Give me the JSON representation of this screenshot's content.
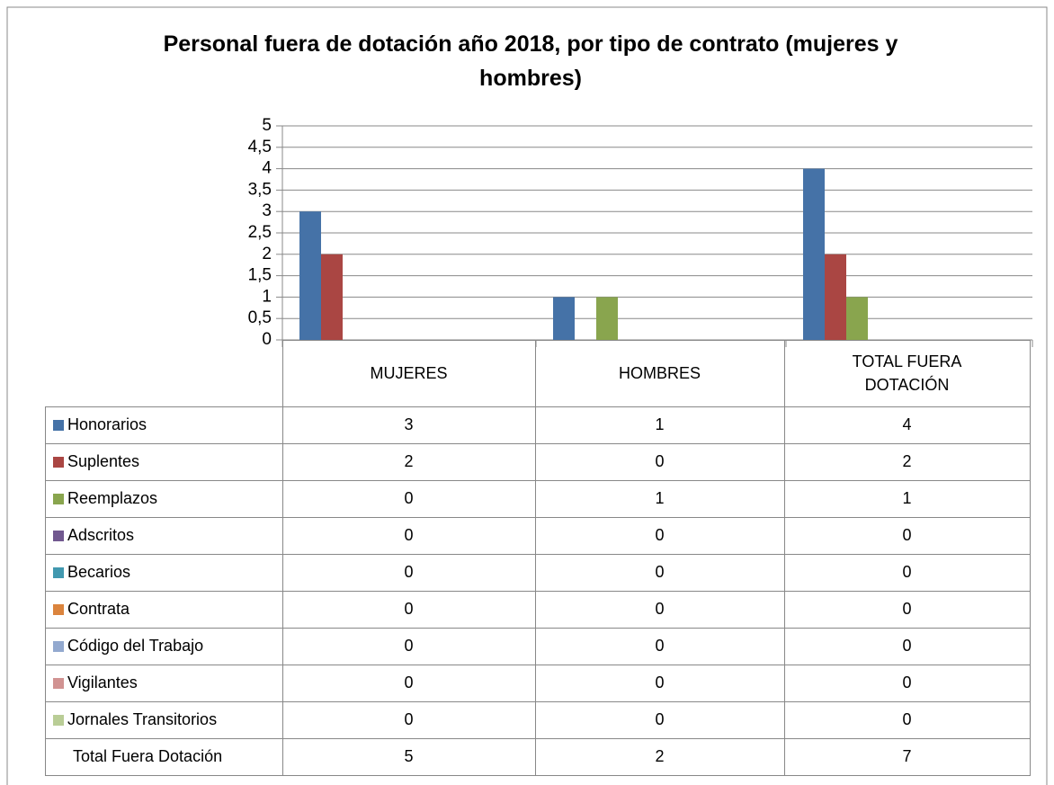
{
  "chart_data": {
    "type": "bar",
    "title": "Personal fuera de dotación año 2018, por tipo de contrato (mujeres y hombres)",
    "categories": [
      "MUJERES",
      "HOMBRES",
      "TOTAL FUERA DOTACIÓN"
    ],
    "ylim": [
      0,
      5
    ],
    "yticks": [
      0,
      {
        "value": 0.5,
        "label": "0,5"
      },
      1,
      {
        "value": 1.5,
        "label": "1,5"
      },
      2,
      {
        "value": 2.5,
        "label": "2,5"
      },
      3,
      {
        "value": 3.5,
        "label": "3,5"
      },
      4,
      {
        "value": 4.5,
        "label": "4,5"
      },
      5
    ],
    "grid": true,
    "series": [
      {
        "name": "Honorarios",
        "color": "#4572a7",
        "values": [
          3,
          1,
          4
        ]
      },
      {
        "name": "Suplentes",
        "color": "#aa4643",
        "values": [
          2,
          0,
          2
        ]
      },
      {
        "name": "Reemplazos",
        "color": "#89a54e",
        "values": [
          0,
          1,
          1
        ]
      },
      {
        "name": "Adscritos",
        "color": "#71588f",
        "values": [
          0,
          0,
          0
        ]
      },
      {
        "name": "Becarios",
        "color": "#4198af",
        "values": [
          0,
          0,
          0
        ]
      },
      {
        "name": "Contrata",
        "color": "#db843d",
        "values": [
          0,
          0,
          0
        ]
      },
      {
        "name": "Código del Trabajo",
        "color": "#93a9cf",
        "values": [
          0,
          0,
          0
        ]
      },
      {
        "name": "Vigilantes",
        "color": "#d19392",
        "values": [
          0,
          0,
          0
        ]
      },
      {
        "name": "Jornales Transitorios",
        "color": "#b9cd96",
        "values": [
          0,
          0,
          0
        ]
      }
    ],
    "totals": {
      "name": "Total Fuera Dotación",
      "values": [
        5,
        2,
        7
      ]
    }
  }
}
